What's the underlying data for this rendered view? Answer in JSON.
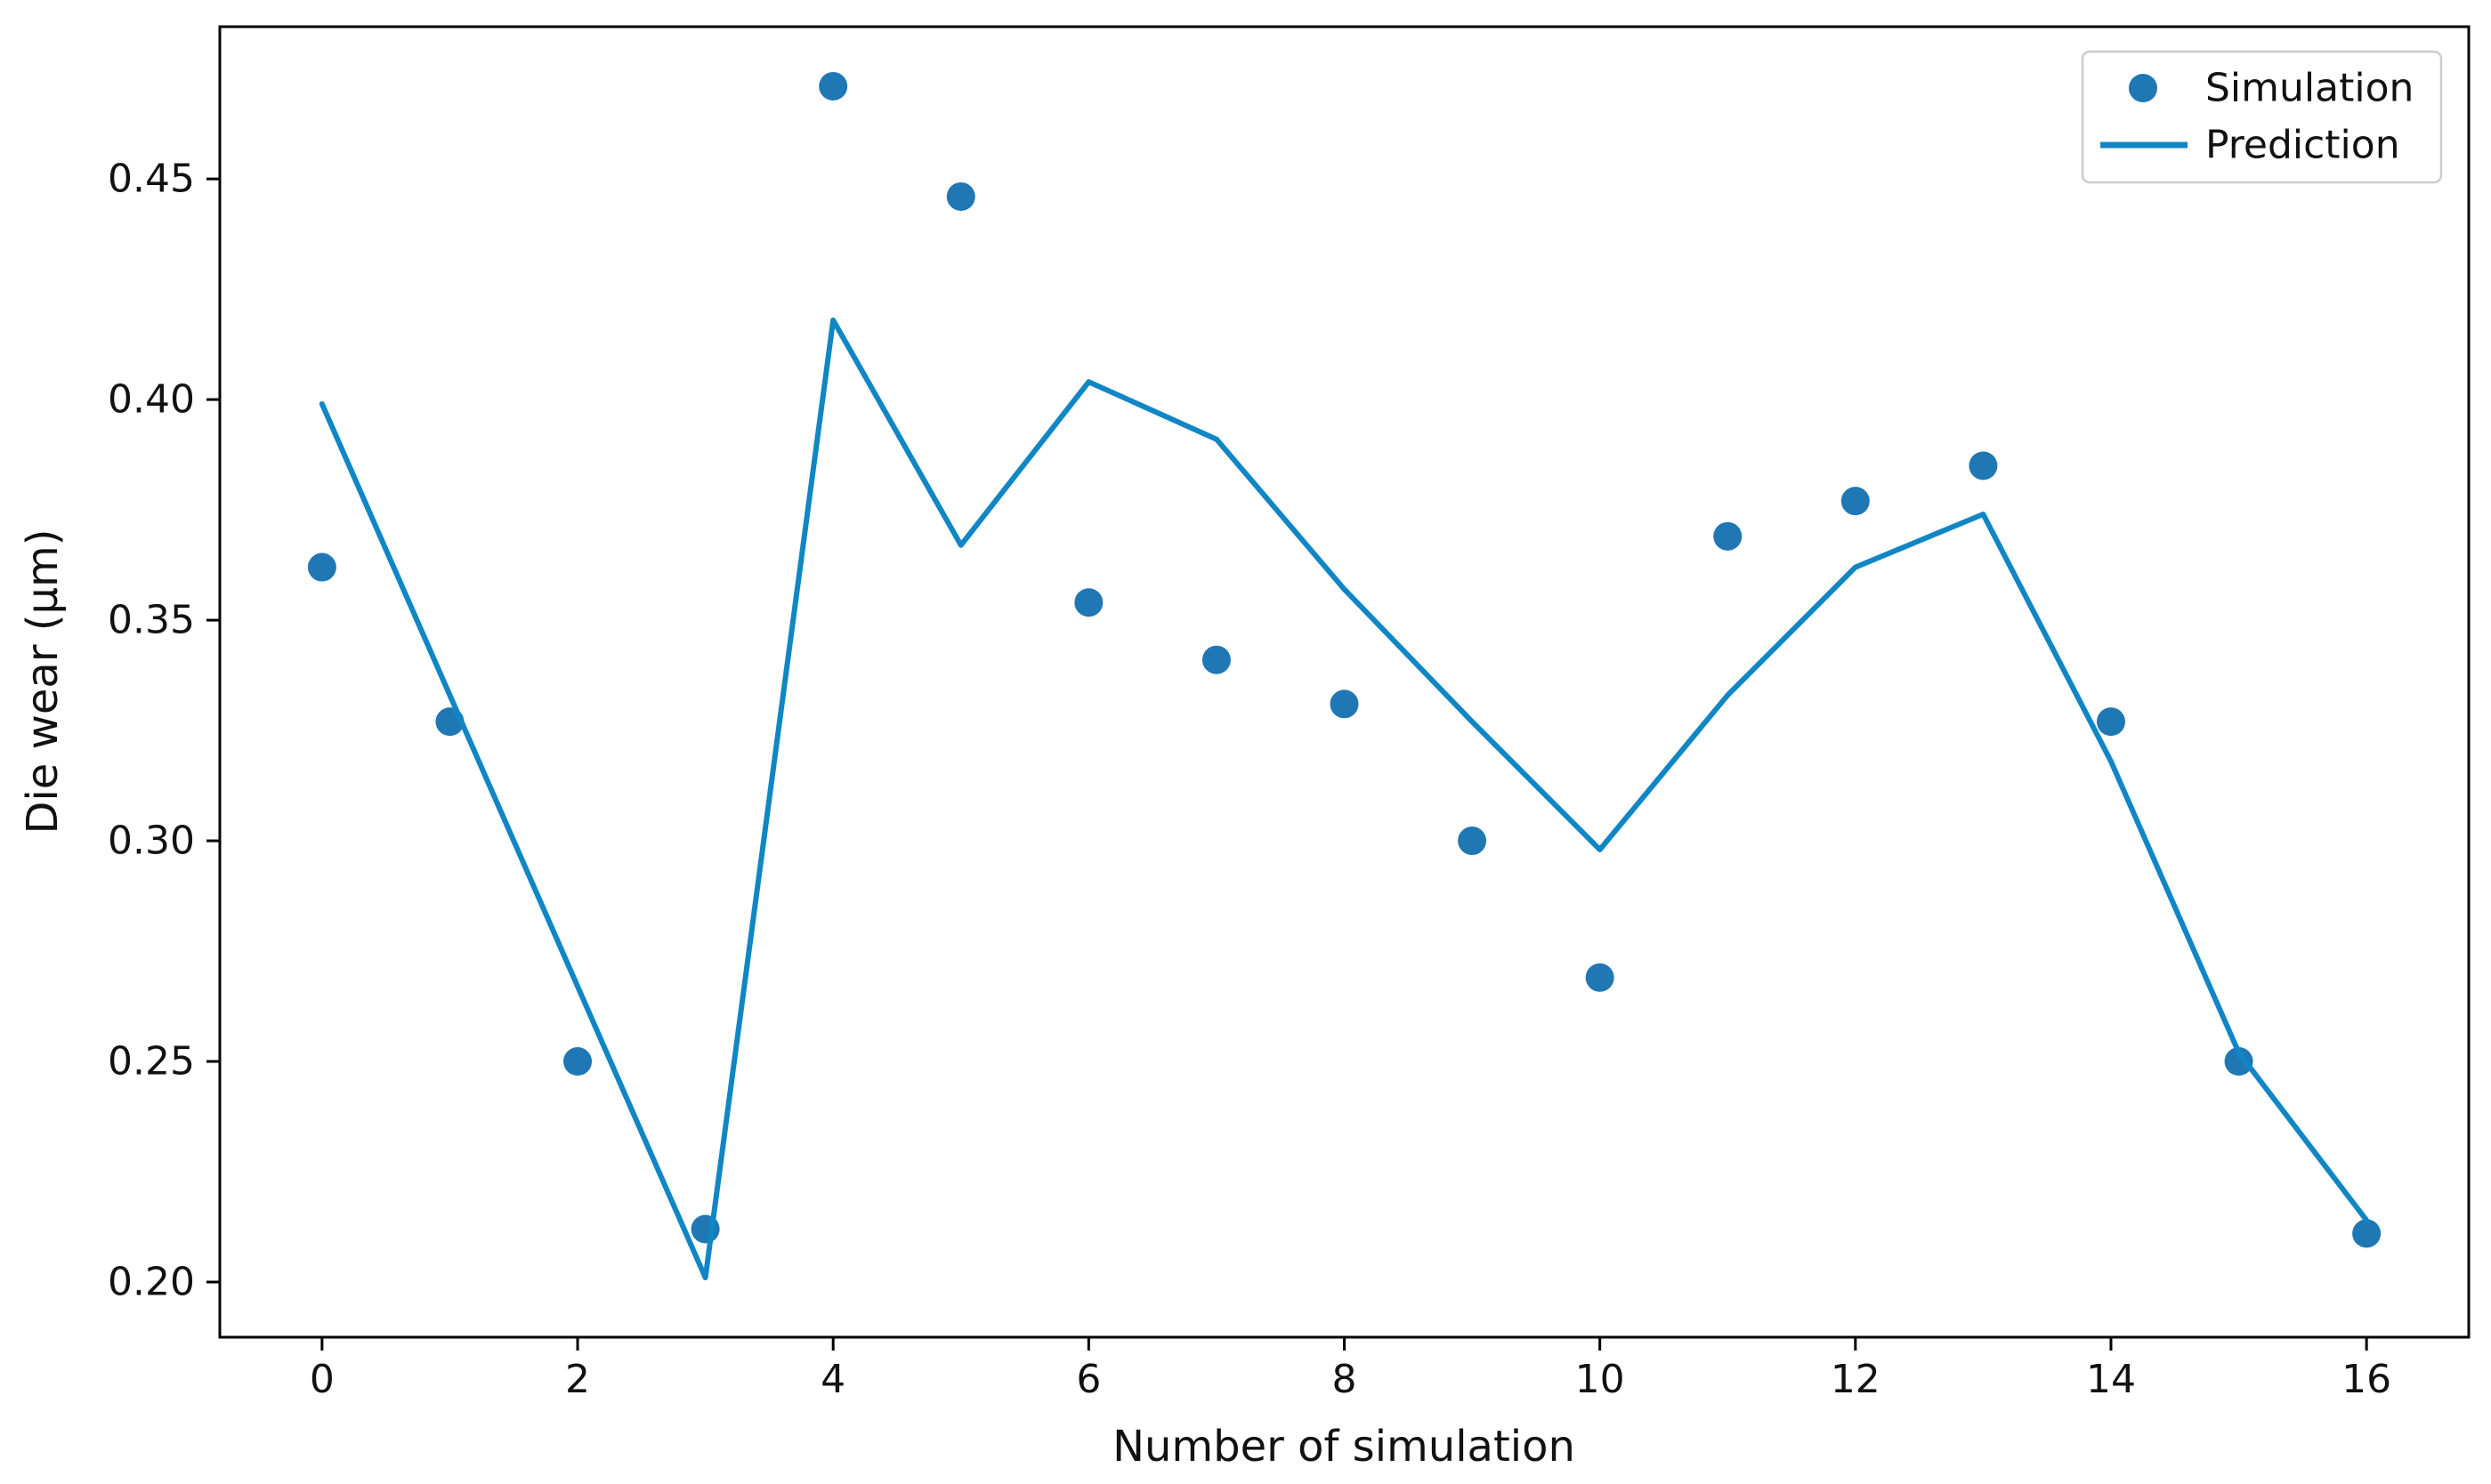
{
  "chart_data": {
    "type": "scatter",
    "title": "",
    "xlabel": "Number of simulation",
    "ylabel": "Die wear (μm)",
    "x": [
      0,
      1,
      2,
      3,
      4,
      5,
      6,
      7,
      8,
      9,
      10,
      11,
      12,
      13,
      14,
      15,
      16
    ],
    "series": [
      {
        "name": "Simulation",
        "type": "scatter",
        "color": "#1f77b4",
        "values": [
          0.362,
          0.327,
          0.25,
          0.212,
          0.471,
          0.446,
          0.354,
          0.341,
          0.331,
          0.3,
          0.269,
          0.369,
          0.377,
          0.385,
          0.327,
          0.25,
          0.211
        ]
      },
      {
        "name": "Prediction",
        "type": "line",
        "color": "#1086c5",
        "values": [
          0.399,
          0.333,
          0.267,
          0.201,
          0.418,
          0.367,
          0.404,
          0.391,
          0.357,
          0.327,
          0.298,
          0.333,
          0.362,
          0.374,
          0.318,
          0.252,
          0.214
        ]
      }
    ],
    "xtick_values": [
      0,
      2,
      4,
      6,
      8,
      10,
      12,
      14,
      16
    ],
    "xtick_labels": [
      "0",
      "2",
      "4",
      "6",
      "8",
      "10",
      "12",
      "14",
      "16"
    ],
    "ytick_values": [
      0.2,
      0.25,
      0.3,
      0.35,
      0.4,
      0.45
    ],
    "ytick_labels": [
      "0.20",
      "0.25",
      "0.30",
      "0.35",
      "0.40",
      "0.45"
    ],
    "xlim": [
      -0.8,
      16.8
    ],
    "ylim": [
      0.1875,
      0.4845
    ],
    "grid": false,
    "legend_position": "upper right",
    "axis_color": "#000000",
    "background_color": "#ffffff"
  }
}
